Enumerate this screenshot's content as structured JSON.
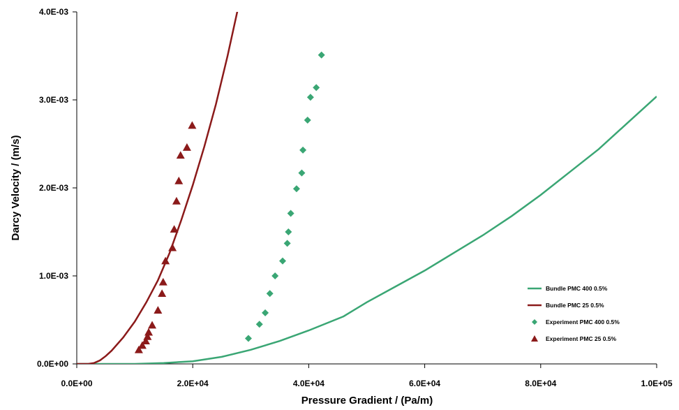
{
  "chart_data": {
    "type": "scatter",
    "title": "",
    "xlabel": "Pressure Gradient / (Pa/m)",
    "ylabel": "Darcy Velocity / (m/s)",
    "xlim": [
      0,
      100000
    ],
    "ylim": [
      0,
      0.004
    ],
    "x_ticks": [
      "0.0E+00",
      "2.0E+04",
      "4.0E+04",
      "6.0E+04",
      "8.0E+04",
      "1.0E+05"
    ],
    "y_ticks": [
      "0.0E+00",
      "1.0E-03",
      "2.0E-03",
      "3.0E-03",
      "4.0E-03"
    ],
    "grid": false,
    "legend_position": "bottom-right",
    "colors": {
      "green": "#3aa674",
      "darkred": "#8b1a1a"
    },
    "series": [
      {
        "name": "Bundle PMC 400 0.5%",
        "kind": "line",
        "color": "#3aa674",
        "points": [
          [
            0,
            0
          ],
          [
            10000,
            0.0
          ],
          [
            15000,
            1e-05
          ],
          [
            20000,
            3e-05
          ],
          [
            25000,
            8e-05
          ],
          [
            30000,
            0.00016
          ],
          [
            35000,
            0.00026
          ],
          [
            40000,
            0.00038
          ],
          [
            46000,
            0.00054
          ],
          [
            50000,
            0.0007
          ],
          [
            55000,
            0.00088
          ],
          [
            60000,
            0.00106
          ],
          [
            65000,
            0.00126
          ],
          [
            70000,
            0.00146
          ],
          [
            75000,
            0.00168
          ],
          [
            80000,
            0.00192
          ],
          [
            85000,
            0.00218
          ],
          [
            90000,
            0.00244
          ],
          [
            95000,
            0.00274
          ],
          [
            100000,
            0.00304
          ]
        ]
      },
      {
        "name": "Bundle PMC 25 0.5%",
        "kind": "line",
        "color": "#8b1a1a",
        "points": [
          [
            0,
            0
          ],
          [
            2000,
            0.0
          ],
          [
            3000,
            1e-05
          ],
          [
            4000,
            4e-05
          ],
          [
            5000,
            9e-05
          ],
          [
            6000,
            0.00015
          ],
          [
            8000,
            0.0003
          ],
          [
            10000,
            0.00048
          ],
          [
            12000,
            0.0007
          ],
          [
            14000,
            0.00095
          ],
          [
            16000,
            0.00126
          ],
          [
            18000,
            0.00163
          ],
          [
            20000,
            0.00203
          ],
          [
            22000,
            0.00247
          ],
          [
            24000,
            0.00295
          ],
          [
            26000,
            0.0035
          ],
          [
            28000,
            0.0041
          ]
        ]
      },
      {
        "name": "Experiment PMC 400 0.5%",
        "kind": "scatter",
        "marker": "diamond",
        "color": "#3aa674",
        "points": [
          [
            29600,
            0.00029
          ],
          [
            31500,
            0.00045
          ],
          [
            32500,
            0.00058
          ],
          [
            33300,
            0.0008
          ],
          [
            34200,
            0.001
          ],
          [
            35500,
            0.00117
          ],
          [
            36300,
            0.00137
          ],
          [
            36500,
            0.0015
          ],
          [
            36900,
            0.00171
          ],
          [
            37900,
            0.00199
          ],
          [
            38800,
            0.00217
          ],
          [
            39000,
            0.00243
          ],
          [
            39800,
            0.00277
          ],
          [
            40300,
            0.00303
          ],
          [
            41300,
            0.00314
          ],
          [
            42200,
            0.00351
          ]
        ]
      },
      {
        "name": "Experiment PMC 25 0.5%",
        "kind": "scatter",
        "marker": "triangle",
        "color": "#8b1a1a",
        "points": [
          [
            10700,
            0.00016
          ],
          [
            11300,
            0.00021
          ],
          [
            11900,
            0.00026
          ],
          [
            12200,
            0.00031
          ],
          [
            12400,
            0.00036
          ],
          [
            13000,
            0.00044
          ],
          [
            14000,
            0.00061
          ],
          [
            14700,
            0.0008
          ],
          [
            14900,
            0.00093
          ],
          [
            15300,
            0.00117
          ],
          [
            16500,
            0.00132
          ],
          [
            16800,
            0.00153
          ],
          [
            17200,
            0.00185
          ],
          [
            17600,
            0.00208
          ],
          [
            17900,
            0.00237
          ],
          [
            19000,
            0.00246
          ],
          [
            19900,
            0.00271
          ]
        ]
      }
    ]
  }
}
